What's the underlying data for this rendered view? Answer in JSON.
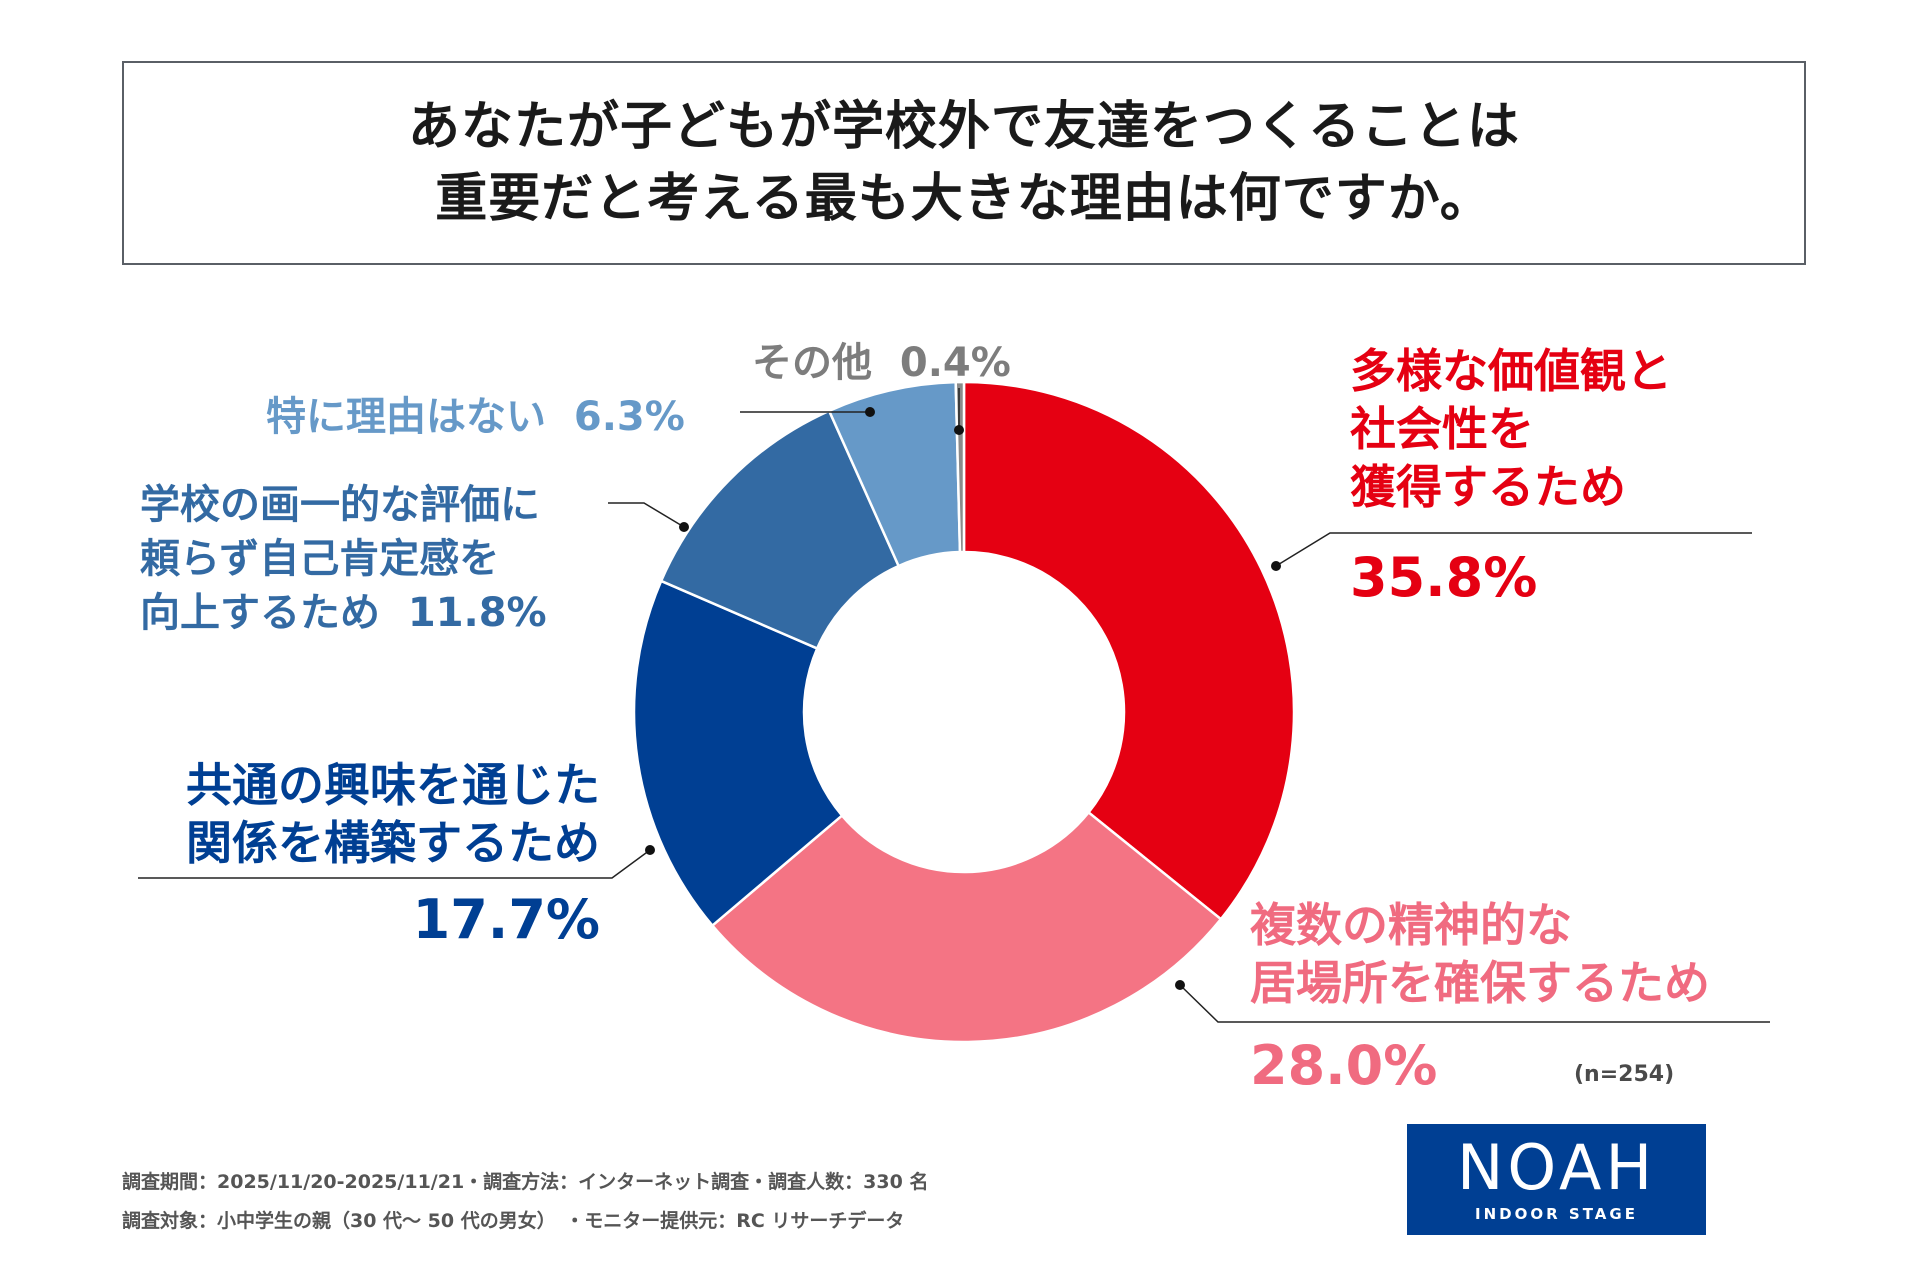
{
  "title": {
    "line1": "あなたが子どもが学校外で友達をつくることは",
    "line2": "重要だと考える最も大きな理由は何ですか。"
  },
  "chart_data": {
    "type": "pie",
    "title": "あなたが子どもが学校外で友達をつくることは重要だと考える最も大きな理由は何ですか。",
    "donut": true,
    "unit": "%",
    "slices": [
      {
        "label": "多様な価値観と社会性を獲得するため",
        "value": 35.8,
        "color": "#e50012"
      },
      {
        "label": "複数の精神的な居場所を確保するため",
        "value": 28.0,
        "color": "#f47484"
      },
      {
        "label": "共通の興味を通じた関係を構築するため",
        "value": 17.7,
        "color": "#003f93"
      },
      {
        "label": "学校の画一的な評価に頼らず自己肯定感を向上するため",
        "value": 11.8,
        "color": "#336aa3"
      },
      {
        "label": "特に理由はない",
        "value": 6.3,
        "color": "#6699c8"
      },
      {
        "label": "その他",
        "value": 0.4,
        "color": "#8a8a8a"
      }
    ]
  },
  "labels": {
    "s0": {
      "lines": [
        "多様な価値観と",
        "社会性を",
        "獲得するため"
      ],
      "value": "35.8%"
    },
    "s1": {
      "lines": [
        "複数の精神的な",
        "居場所を確保するため"
      ],
      "value": "28.0%"
    },
    "s2": {
      "lines": [
        "共通の興味を通じた",
        "関係を構築するため"
      ],
      "value": "17.7%"
    },
    "s3": {
      "lines": [
        "学校の画一的な評価に",
        "頼らず自己肯定感を",
        "向上するため"
      ],
      "value": "11.8%"
    },
    "s4": {
      "text": "特に理由はない",
      "value": "6.3%"
    },
    "s5": {
      "text": "その他",
      "value": "0.4%"
    }
  },
  "sample": "(n=254)",
  "footer": {
    "line1": "調査期間：2025/11/20-2025/11/21・調査方法：インターネット調査・調査人数：330 名",
    "line2": "調査対象：小中学生の親（30 代～ 50 代の男女）　・モニター提供元：RC リサーチデータ"
  },
  "logo": {
    "main": "NOAH",
    "sub": "INDOOR STAGE"
  }
}
